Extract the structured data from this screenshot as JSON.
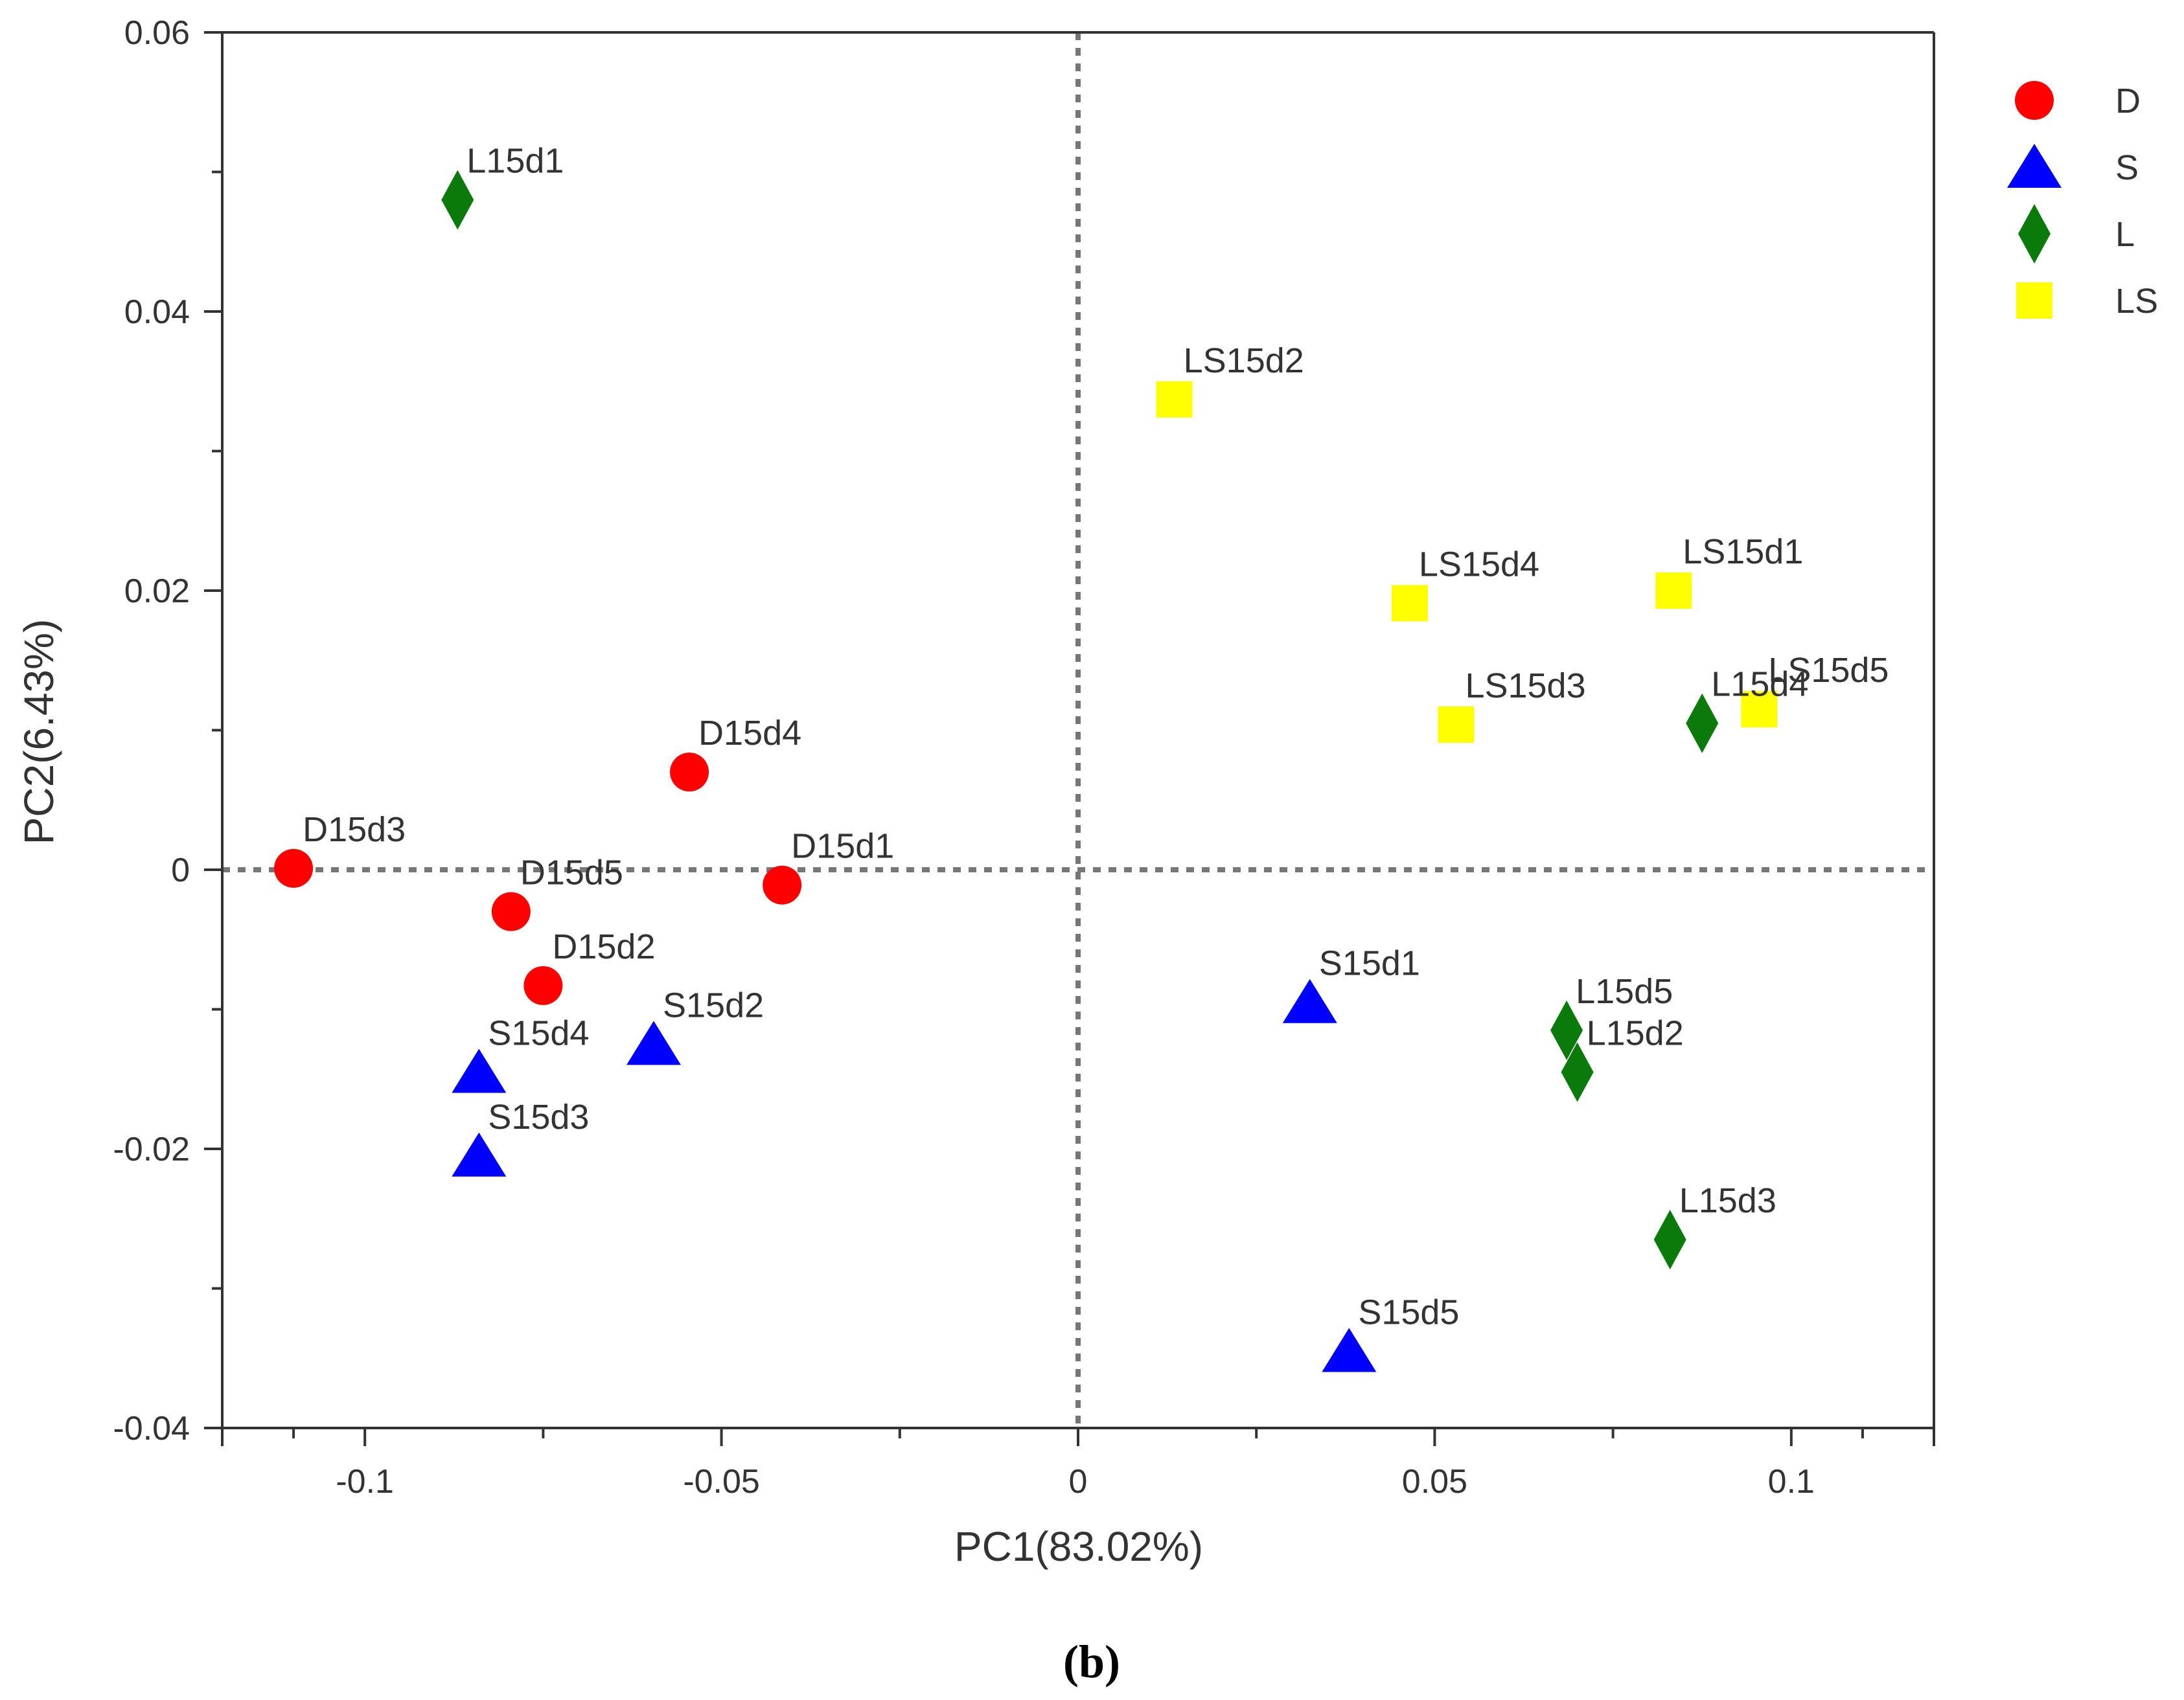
{
  "figure_caption": "(b)",
  "chart_data": {
    "type": "scatter",
    "title": "",
    "xlabel": "PC1(83.02%)",
    "ylabel": "PC2(6.43%)",
    "xlim": [
      -0.12,
      0.12
    ],
    "ylim": [
      -0.04,
      0.06
    ],
    "xticks": [
      -0.1,
      -0.05,
      0,
      0.05,
      0.1
    ],
    "xtick_labels": [
      "-0.1",
      "-0.05",
      "0",
      "0.05",
      "0.1"
    ],
    "yticks": [
      -0.04,
      -0.02,
      0,
      0.02,
      0.04,
      0.06
    ],
    "ytick_labels": [
      "-0.04",
      "-0.02",
      "0",
      "0.02",
      "0.04",
      "0.06"
    ],
    "reference_lines": {
      "x": 0,
      "y": 0,
      "style": "dotted"
    },
    "grid": false,
    "legend_position": "right, outside plot",
    "series": [
      {
        "name": "D",
        "marker": "circle",
        "color": "#ff0000",
        "points": [
          {
            "label": "D15d1",
            "x": -0.0415,
            "y": -0.0011
          },
          {
            "label": "D15d2",
            "x": -0.075,
            "y": -0.0083
          },
          {
            "label": "D15d3",
            "x": -0.11,
            "y": 0.0001
          },
          {
            "label": "D15d4",
            "x": -0.0545,
            "y": 0.007
          },
          {
            "label": "D15d5",
            "x": -0.0795,
            "y": -0.003
          }
        ]
      },
      {
        "name": "S",
        "marker": "triangle",
        "color": "#0000ff",
        "points": [
          {
            "label": "S15d1",
            "x": 0.0325,
            "y": -0.0095
          },
          {
            "label": "S15d2",
            "x": -0.0595,
            "y": -0.0125
          },
          {
            "label": "S15d3",
            "x": -0.084,
            "y": -0.0205
          },
          {
            "label": "S15d4",
            "x": -0.084,
            "y": -0.0145
          },
          {
            "label": "S15d5",
            "x": 0.038,
            "y": -0.0345
          }
        ]
      },
      {
        "name": "L",
        "marker": "diamond",
        "color": "#0a7a0a",
        "points": [
          {
            "label": "L15d1",
            "x": -0.087,
            "y": 0.048
          },
          {
            "label": "L15d2",
            "x": 0.07,
            "y": -0.0145
          },
          {
            "label": "L15d3",
            "x": 0.083,
            "y": -0.0265
          },
          {
            "label": "L15d4",
            "x": 0.0875,
            "y": 0.0105
          },
          {
            "label": "L15d5",
            "x": 0.0685,
            "y": -0.0115
          }
        ]
      },
      {
        "name": "LS",
        "marker": "square",
        "color": "#ffff00",
        "points": [
          {
            "label": "LS15d1",
            "x": 0.0835,
            "y": 0.02
          },
          {
            "label": "LS15d2",
            "x": 0.0135,
            "y": 0.0337
          },
          {
            "label": "LS15d3",
            "x": 0.053,
            "y": 0.0104
          },
          {
            "label": "LS15d4",
            "x": 0.0465,
            "y": 0.0191
          },
          {
            "label": "LS15d5",
            "x": 0.0955,
            "y": 0.0115
          }
        ]
      }
    ]
  }
}
